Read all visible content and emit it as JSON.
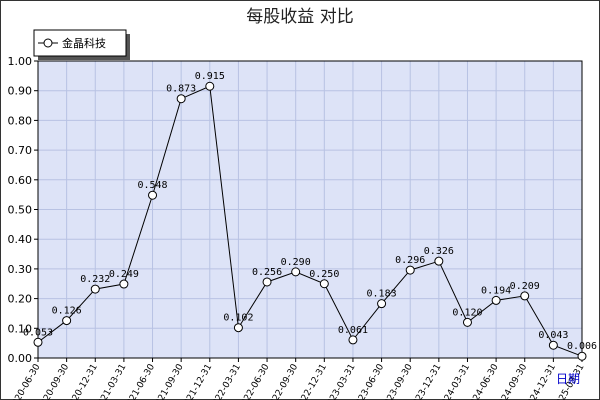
{
  "chart_data": {
    "type": "line",
    "title": "每股收益  对比",
    "xlabel": "日期",
    "ylabel": "",
    "ylim": [
      0,
      1.0
    ],
    "yticks": [
      "0.00",
      "0.10",
      "0.20",
      "0.30",
      "0.40",
      "0.50",
      "0.60",
      "0.70",
      "0.80",
      "0.90",
      "1.00"
    ],
    "grid": true,
    "legend_position": "top-left",
    "categories": [
      "2020-06-30",
      "2020-09-30",
      "2020-12-31",
      "2021-03-31",
      "2021-06-30",
      "2021-09-30",
      "2021-12-31",
      "2022-03-31",
      "2022-06-30",
      "2022-09-30",
      "2022-12-31",
      "2023-03-31",
      "2023-06-30",
      "2023-09-30",
      "2023-12-31",
      "2024-03-31",
      "2024-06-30",
      "2024-09-30",
      "2024-12-31",
      "2025-03-31"
    ],
    "series": [
      {
        "name": "金晶科技",
        "values": [
          0.053,
          0.126,
          0.232,
          0.249,
          0.548,
          0.873,
          0.915,
          0.102,
          0.256,
          0.29,
          0.25,
          0.061,
          0.183,
          0.296,
          0.326,
          0.12,
          0.194,
          0.209,
          0.043,
          0.006
        ],
        "labels": [
          "0.053",
          "0.126",
          "0.232",
          "0.249",
          "0.548",
          "0.873",
          "0.915",
          "0.102",
          "0.256",
          "0.290",
          "0.250",
          "0.061",
          "0.183",
          "0.296",
          "0.326",
          "0.120",
          "0.194",
          "0.209",
          "0.043",
          "0.006"
        ]
      }
    ],
    "colors": {
      "plot_background": "#dde3f7",
      "grid": "#b8c2e3",
      "line": "#000000",
      "axis_label": "#0000cc"
    }
  }
}
